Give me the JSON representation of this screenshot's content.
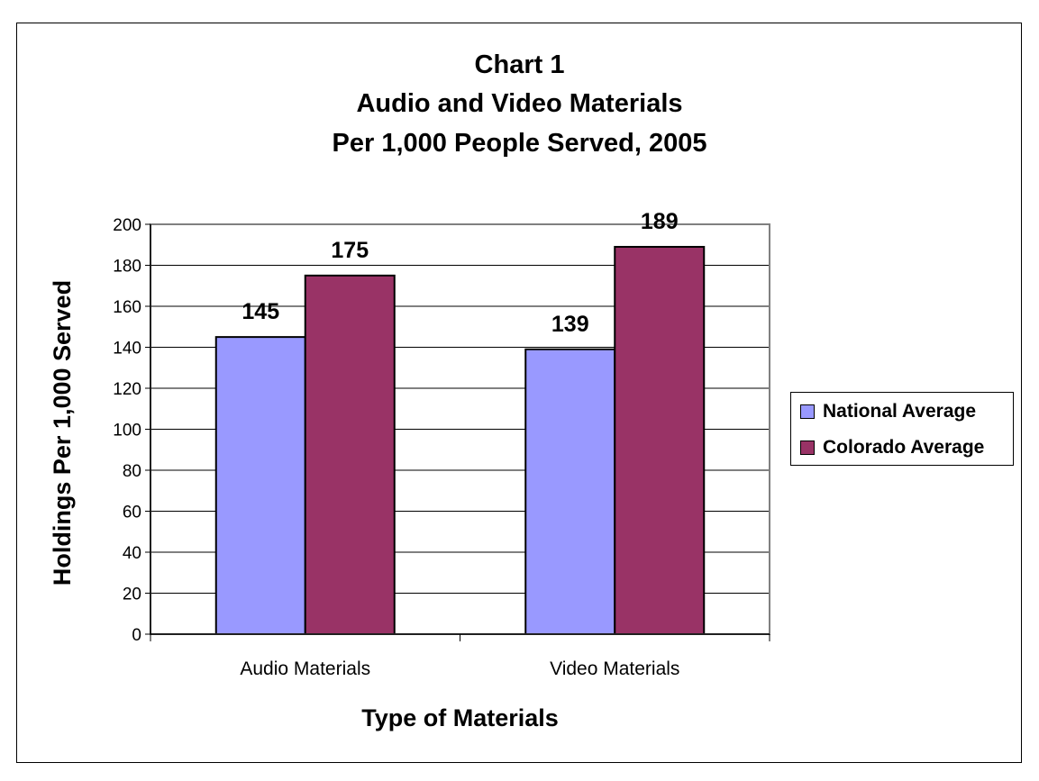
{
  "chart_data": {
    "type": "bar",
    "title": [
      "Chart 1",
      "Audio and Video Materials",
      "Per 1,000 People Served, 2005"
    ],
    "xlabel": "Type of Materials",
    "ylabel": "Holdings Per 1,000 Served",
    "categories": [
      "Audio Materials",
      "Video Materials"
    ],
    "series": [
      {
        "name": "National Average",
        "values": [
          145,
          139
        ],
        "color": "#9999ff"
      },
      {
        "name": "Colorado Average",
        "values": [
          175,
          189
        ],
        "color": "#993366"
      }
    ],
    "ylim": [
      0,
      200
    ],
    "yticks": [
      0,
      20,
      40,
      60,
      80,
      100,
      120,
      140,
      160,
      180,
      200
    ],
    "grid": true,
    "legend_position": "right",
    "plot_background": "#ffffff"
  }
}
